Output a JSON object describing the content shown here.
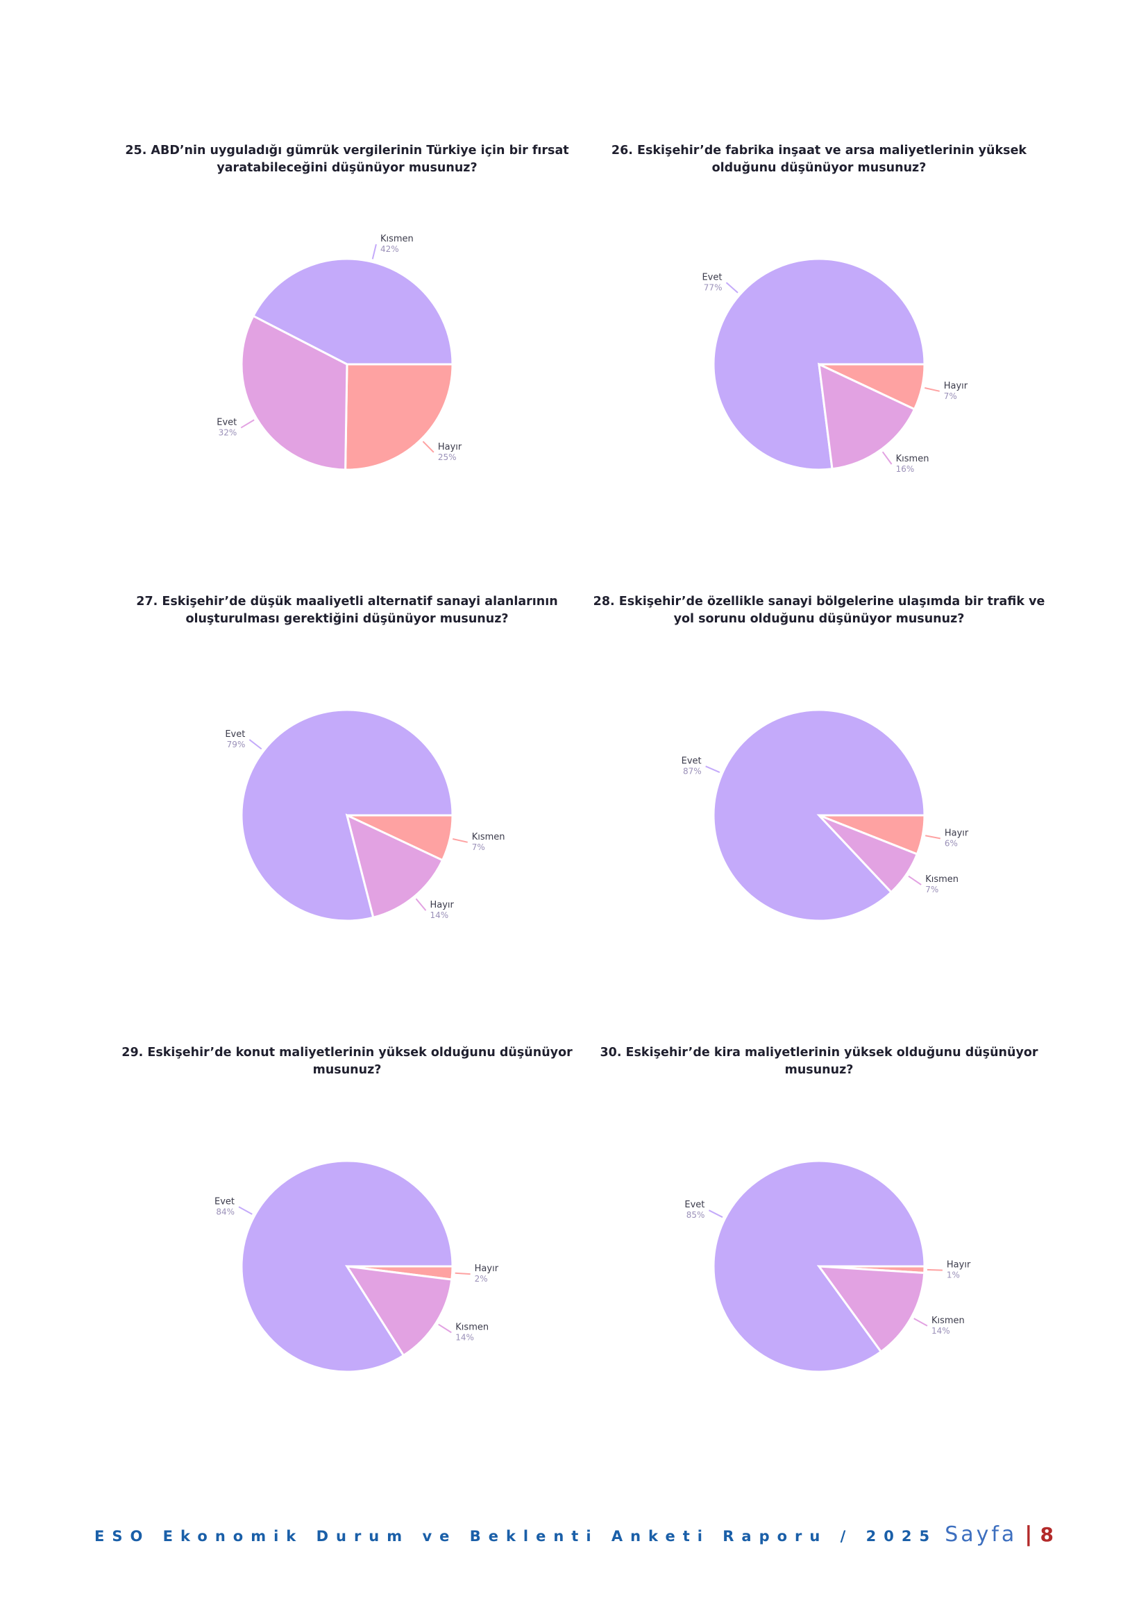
{
  "colors": {
    "Evet": "#E2A2E2",
    "Kısmen": "#C4AAFA",
    "Hayır": "#FEA2A2"
  },
  "chart_data": [
    {
      "type": "pie",
      "title": "25. ABD’nin uyguladığı gümrük vergilerinin Türkiye için bir fırsat\nyaratabileceğini düşünüyor musunuz?",
      "slices": [
        {
          "label": "Kısmen",
          "value": 42,
          "value_label": "42%",
          "color": "#C4AAFA"
        },
        {
          "label": "Hayır",
          "value": 25,
          "value_label": "25%",
          "color": "#FEA2A2"
        },
        {
          "label": "Evet",
          "value": 32,
          "value_label": "32%",
          "color": "#E2A2E2"
        }
      ]
    },
    {
      "type": "pie",
      "title": "26. Eskişehir’de fabrika inşaat ve arsa maliyetlerinin yüksek\nolduğunu düşünüyor musunuz?",
      "slices": [
        {
          "label": "Evet",
          "value": 77,
          "value_label": "77%",
          "color": "#C4AAFA"
        },
        {
          "label": "Hayır",
          "value": 7,
          "value_label": "7%",
          "color": "#FEA2A2"
        },
        {
          "label": "Kısmen",
          "value": 16,
          "value_label": "16%",
          "color": "#E2A2E2"
        }
      ]
    },
    {
      "type": "pie",
      "title": "27. Eskişehir’de düşük maaliyetli alternatif sanayi alanlarının\noluşturulması gerektiğini düşünüyor musunuz?",
      "slices": [
        {
          "label": "Evet",
          "value": 79,
          "value_label": "79%",
          "color": "#C4AAFA"
        },
        {
          "label": "Kısmen",
          "value": 7,
          "value_label": "7%",
          "color": "#FEA2A2"
        },
        {
          "label": "Hayır",
          "value": 14,
          "value_label": "14%",
          "color": "#E2A2E2"
        }
      ]
    },
    {
      "type": "pie",
      "title": "28. Eskişehir’de özellikle sanayi bölgelerine ulaşımda bir trafik ve\nyol sorunu olduğunu düşünüyor musunuz?",
      "slices": [
        {
          "label": "Evet",
          "value": 87,
          "value_label": "87%",
          "color": "#C4AAFA"
        },
        {
          "label": "Hayır",
          "value": 6,
          "value_label": "6%",
          "color": "#FEA2A2"
        },
        {
          "label": "Kısmen",
          "value": 7,
          "value_label": "7%",
          "color": "#E2A2E2"
        }
      ]
    },
    {
      "type": "pie",
      "title": "29. Eskişehir’de konut maliyetlerinin yüksek olduğunu düşünüyor\nmusunuz?",
      "slices": [
        {
          "label": "Evet",
          "value": 84,
          "value_label": "84%",
          "color": "#C4AAFA"
        },
        {
          "label": "Hayır",
          "value": 2,
          "value_label": "2%",
          "color": "#FEA2A2"
        },
        {
          "label": "Kısmen",
          "value": 14,
          "value_label": "14%",
          "color": "#E2A2E2"
        }
      ]
    },
    {
      "type": "pie",
      "title": "30. Eskişehir’de kira maliyetlerinin yüksek olduğunu düşünüyor\nmusunuz?",
      "slices": [
        {
          "label": "Evet",
          "value": 85,
          "value_label": "85%",
          "color": "#C4AAFA"
        },
        {
          "label": "Hayır",
          "value": 1,
          "value_label": "1%",
          "color": "#FEA2A2"
        },
        {
          "label": "Kısmen",
          "value": 14,
          "value_label": "14%",
          "color": "#E2A2E2"
        }
      ]
    }
  ],
  "footer": {
    "report_title": "ESO Ekonomik Durum ve Beklenti Anketi Raporu / 2025",
    "page_word": "Sayfa",
    "separator": "|",
    "page_number": "8"
  }
}
